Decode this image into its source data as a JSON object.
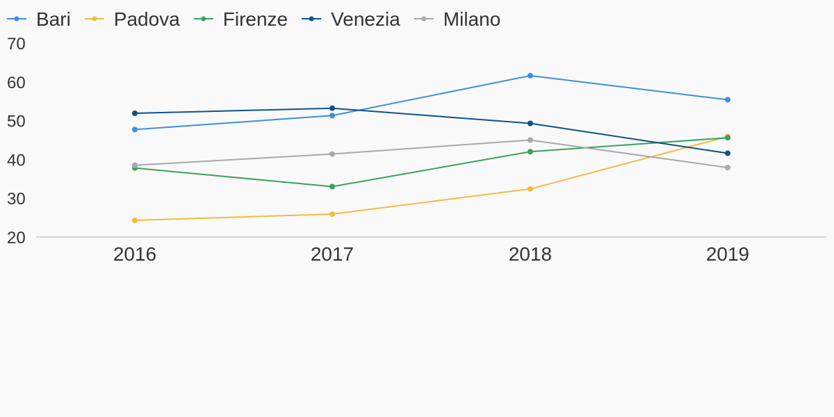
{
  "chart_data": {
    "type": "line",
    "title": "",
    "xlabel": "",
    "ylabel": "",
    "x": [
      "2016",
      "2017",
      "2018",
      "2019"
    ],
    "ylim": [
      20,
      70
    ],
    "yticks": [
      20,
      30,
      40,
      50,
      60,
      70
    ],
    "grid": false,
    "legend_position": "top-left",
    "series": [
      {
        "name": "Bari",
        "color": "#3b8ee0",
        "values": [
          47.7,
          51.3,
          61.6,
          55.4
        ]
      },
      {
        "name": "Padova",
        "color": "#f8b93e",
        "values": [
          24.3,
          25.9,
          32.4,
          45.9
        ]
      },
      {
        "name": "Firenze",
        "color": "#34a35c",
        "values": [
          37.8,
          33.0,
          42.0,
          45.6
        ]
      },
      {
        "name": "Venezia",
        "color": "#0c5288",
        "values": [
          51.9,
          53.2,
          49.3,
          41.6
        ]
      },
      {
        "name": "Milano",
        "color": "#a8a8a8",
        "values": [
          38.5,
          41.4,
          45.0,
          37.9
        ]
      }
    ],
    "axis_color": "#d4d4d4"
  }
}
